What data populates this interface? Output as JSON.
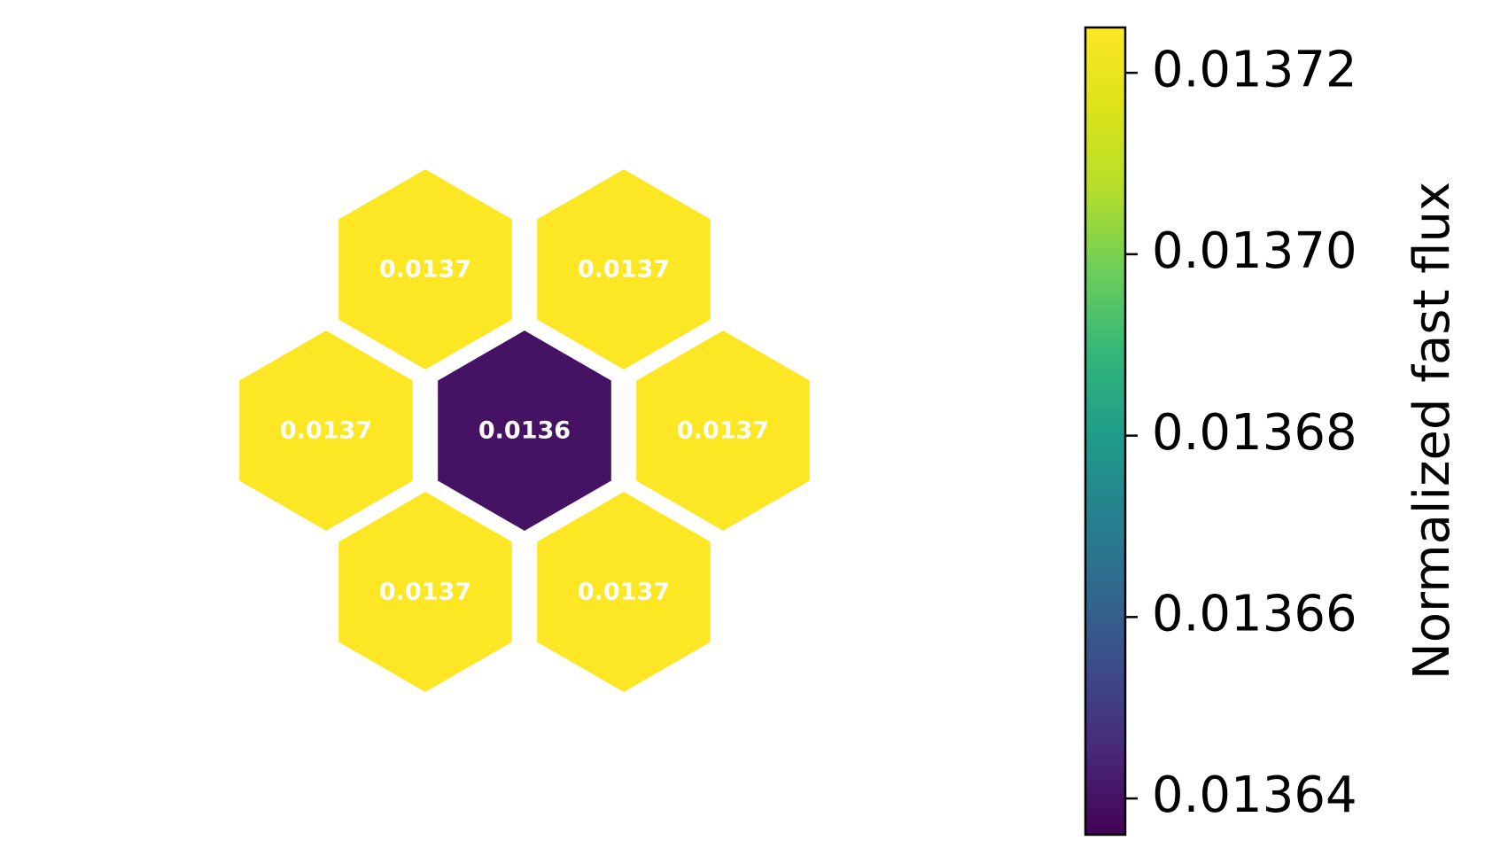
{
  "chart_data": {
    "type": "heatmap",
    "layout": "hexagonal",
    "cells": [
      {
        "id": "center",
        "value": 0.01364,
        "label": "0.0136"
      },
      {
        "id": "top-left",
        "value": 0.01373,
        "label": "0.0137"
      },
      {
        "id": "top-right",
        "value": 0.01373,
        "label": "0.0137"
      },
      {
        "id": "left",
        "value": 0.01373,
        "label": "0.0137"
      },
      {
        "id": "right",
        "value": 0.01373,
        "label": "0.0137"
      },
      {
        "id": "bottom-left",
        "value": 0.01373,
        "label": "0.0137"
      },
      {
        "id": "bottom-right",
        "value": 0.01373,
        "label": "0.0137"
      }
    ],
    "colorbar": {
      "label": "Normalized fast flux",
      "colormap": "viridis",
      "range": [
        0.013636,
        0.013725
      ],
      "ticks": [
        0.01364,
        0.01366,
        0.01368,
        0.0137,
        0.01372
      ],
      "tick_labels": [
        "0.01364",
        "0.01366",
        "0.01368",
        "0.01370",
        "0.01372"
      ]
    },
    "cell_edge_color": "#ffffff",
    "cell_label_color": "#ffffff"
  }
}
